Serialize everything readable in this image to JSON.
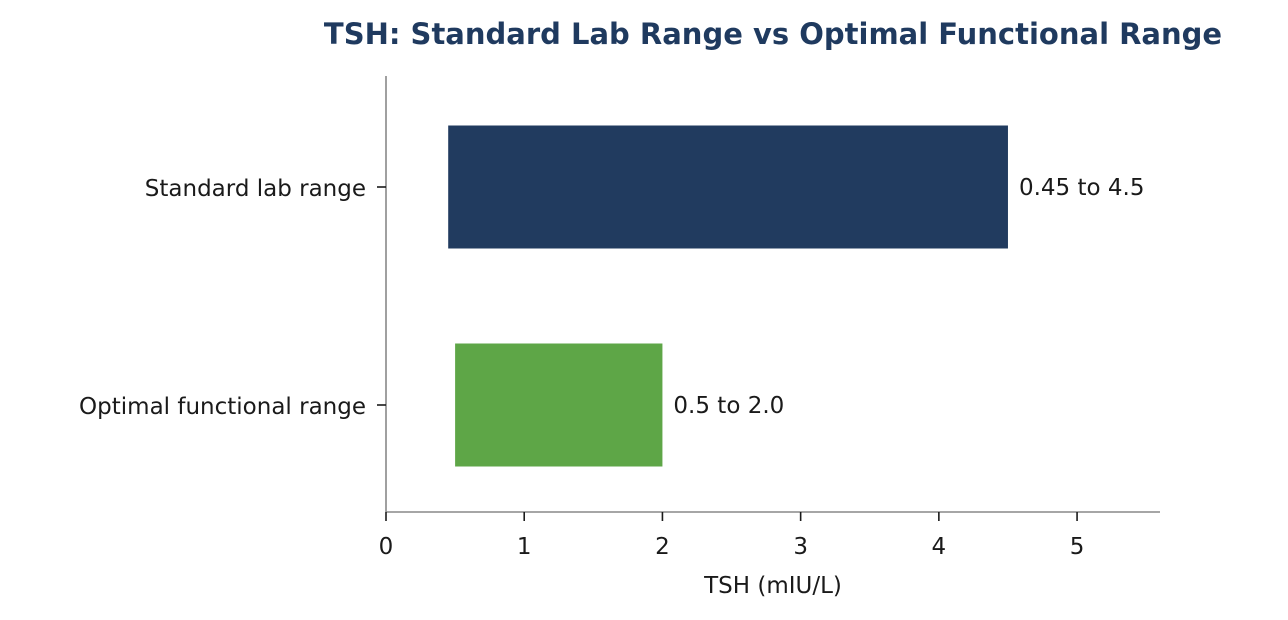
{
  "chart_data": {
    "type": "bar",
    "orientation": "horizontal",
    "title": "TSH: Standard Lab Range vs Optimal Functional Range",
    "xlabel": "TSH (mIU/L)",
    "ylabel": "",
    "xlim": [
      0,
      5.6
    ],
    "xticks": [
      0,
      1,
      2,
      3,
      4,
      5
    ],
    "grid": false,
    "categories": [
      "Standard lab range",
      "Optimal functional range"
    ],
    "ranges": [
      {
        "category": "Standard lab range",
        "start": 0.45,
        "end": 4.5,
        "label": "0.45 to 4.5",
        "color": "#213b5f"
      },
      {
        "category": "Optimal functional range",
        "start": 0.5,
        "end": 2.0,
        "label": "0.5 to 2.0",
        "color": "#5ea647"
      }
    ],
    "colors": {
      "title": "#1f3a5f",
      "axis": "#888888",
      "text": "#1a1a1a"
    }
  }
}
